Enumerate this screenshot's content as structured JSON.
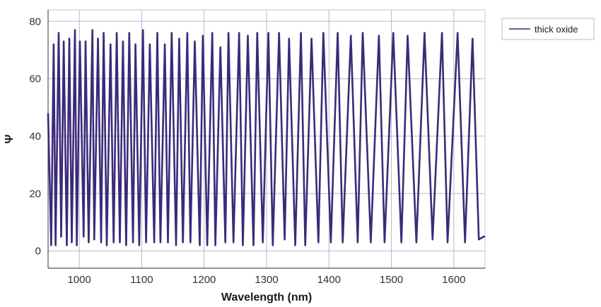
{
  "chart_data": {
    "type": "line",
    "title": "",
    "xlabel": "Wavelength (nm)",
    "ylabel": "Ψ",
    "xlim": [
      950,
      1650
    ],
    "ylim": [
      -6,
      84
    ],
    "x_ticks": [
      "1000",
      "1100",
      "1200",
      "1300",
      "1400",
      "1500",
      "1600"
    ],
    "y_ticks": [
      "0",
      "20",
      "40",
      "60",
      "80"
    ],
    "grid": true,
    "legend_position": "top-right",
    "colors": {
      "line": "#3b2a7a",
      "grid": "#b8b8c8",
      "axis": "#555555"
    },
    "series": [
      {
        "name": "thick oxide",
        "x": [
          950,
          955,
          959,
          962,
          967,
          971,
          975,
          980,
          984,
          988,
          993,
          996,
          1001,
          1007,
          1010,
          1015,
          1021,
          1024,
          1030,
          1035,
          1039,
          1044,
          1050,
          1055,
          1060,
          1065,
          1070,
          1075,
          1080,
          1086,
          1090,
          1096,
          1102,
          1107,
          1113,
          1120,
          1125,
          1130,
          1137,
          1142,
          1148,
          1155,
          1160,
          1166,
          1173,
          1178,
          1185,
          1193,
          1198,
          1205,
          1213,
          1218,
          1226,
          1234,
          1239,
          1247,
          1256,
          1262,
          1270,
          1279,
          1285,
          1294,
          1303,
          1310,
          1320,
          1329,
          1336,
          1346,
          1355,
          1362,
          1372,
          1383,
          1391,
          1403,
          1414,
          1422,
          1435,
          1446,
          1454,
          1467,
          1480,
          1489,
          1503,
          1516,
          1526,
          1540,
          1553,
          1566,
          1581,
          1590,
          1606,
          1618,
          1630,
          1640,
          1648,
          1650
        ],
        "values": [
          48,
          2,
          72,
          2,
          76,
          5,
          73,
          2,
          74,
          3,
          77,
          2,
          73,
          5,
          73,
          3,
          77,
          4,
          74,
          3,
          76,
          2,
          72,
          3,
          76,
          3,
          73,
          2,
          76,
          3,
          72,
          2,
          77,
          3,
          72,
          3,
          76,
          3,
          72,
          3,
          76,
          2,
          74,
          3,
          76,
          3,
          73,
          2,
          75,
          2,
          76,
          2,
          71,
          3,
          76,
          3,
          76,
          2,
          75,
          2,
          76,
          3,
          76,
          2,
          76,
          4,
          74,
          2,
          76,
          2,
          74,
          3,
          76,
          3,
          76,
          3,
          75,
          3,
          76,
          3,
          75,
          3,
          76,
          3,
          75,
          3,
          76,
          4,
          76,
          3,
          76,
          3,
          74,
          4,
          5,
          5
        ]
      }
    ]
  }
}
